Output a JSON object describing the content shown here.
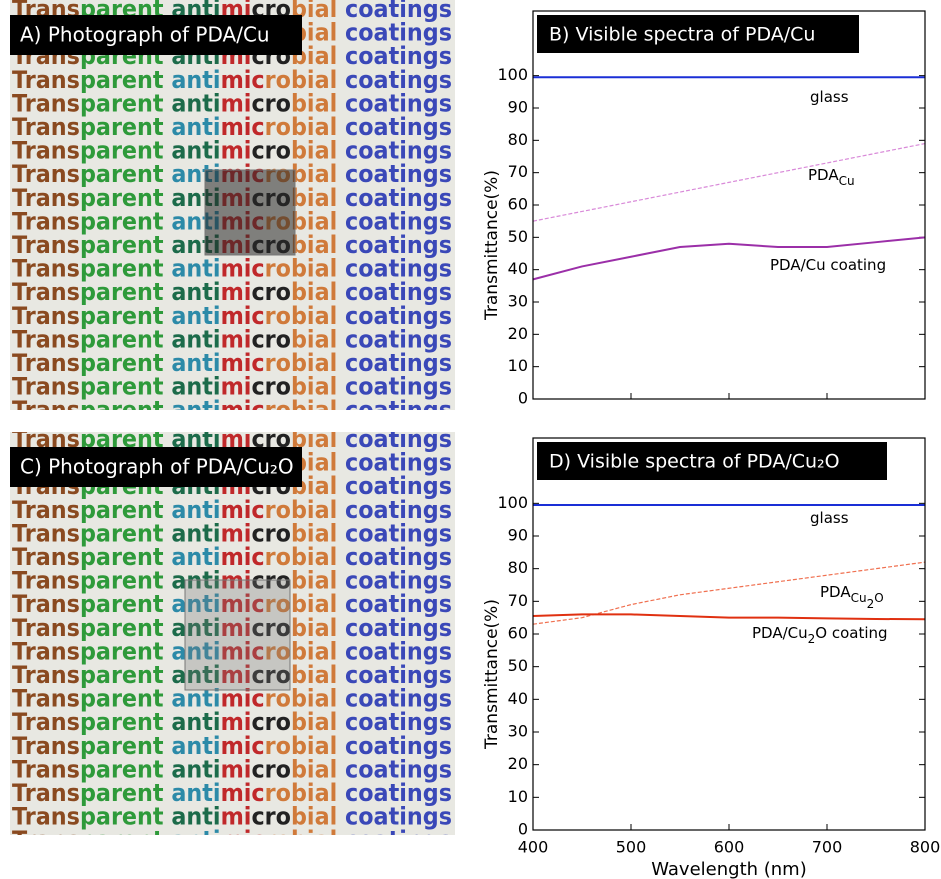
{
  "photos": [
    {
      "title": "A) Photograph of PDA/Cu",
      "text": "Transparent antimicrobial coatings"
    },
    {
      "title": "C) Photograph of PDA/Cu₂O",
      "text": "Transparent antimicrobial coatings"
    }
  ],
  "chart_data": [
    {
      "type": "line",
      "title": "B) Visible spectra of PDA/Cu",
      "ylabel": "Transmittance(%)",
      "x": [
        400,
        450,
        500,
        550,
        600,
        650,
        700,
        750,
        800
      ],
      "series": [
        {
          "name": [
            {
              "text": "glass"
            }
          ],
          "color": "#1a2fd6",
          "values": [
            99.5,
            99.5,
            99.5,
            99.5,
            99.5,
            99.5,
            99.5,
            99.5,
            99.5
          ]
        },
        {
          "name": [
            {
              "text": "PDA"
            },
            {
              "text": "Cu",
              "sub": 1
            }
          ],
          "color": "#d98ad9",
          "dashed": true,
          "values": [
            55,
            58,
            61,
            64,
            67,
            70,
            73,
            76,
            79
          ]
        },
        {
          "name": [
            {
              "text": "PDA/Cu coating"
            }
          ],
          "color": "#9b2fa8",
          "values": [
            37,
            41,
            44,
            47,
            48,
            47,
            47,
            48.5,
            50
          ]
        }
      ],
      "xlim": [
        400,
        800
      ],
      "ylim": [
        0,
        120
      ],
      "xticks": [
        400,
        500,
        600,
        700,
        800
      ],
      "yticks": [
        0,
        10,
        20,
        30,
        40,
        50,
        60,
        70,
        80,
        90,
        100
      ]
    },
    {
      "type": "line",
      "title": "D) Visible spectra of PDA/Cu₂O",
      "ylabel": "Transmittance(%)",
      "xlabel": "Wavelength (nm)",
      "x": [
        400,
        450,
        500,
        550,
        600,
        650,
        700,
        750,
        800
      ],
      "series": [
        {
          "name": [
            {
              "text": "glass"
            }
          ],
          "color": "#1a2fd6",
          "values": [
            99.5,
            99.5,
            99.5,
            99.5,
            99.5,
            99.5,
            99.5,
            99.5,
            99.5
          ]
        },
        {
          "name": [
            {
              "text": "PDA"
            },
            {
              "text": "Cu",
              "sub": 1
            },
            {
              "text": "2",
              "sub": 2
            },
            {
              "text": "O",
              "sub": 1
            }
          ],
          "color": "#f07050",
          "dashed": true,
          "values": [
            63,
            65,
            69,
            72,
            74,
            76,
            78,
            80,
            82
          ]
        },
        {
          "name": [
            {
              "text": "PDA/Cu"
            },
            {
              "text": "2",
              "sub": 1
            },
            {
              "text": "O coating"
            }
          ],
          "color": "#e03010",
          "values": [
            65.5,
            66,
            66,
            65.5,
            65,
            65,
            64.8,
            64.6,
            64.5
          ]
        }
      ],
      "xlim": [
        400,
        800
      ],
      "ylim": [
        0,
        120
      ],
      "xticks": [
        400,
        500,
        600,
        700,
        800
      ],
      "yticks": [
        0,
        10,
        20,
        30,
        40,
        50,
        60,
        70,
        80,
        90,
        100
      ]
    }
  ]
}
